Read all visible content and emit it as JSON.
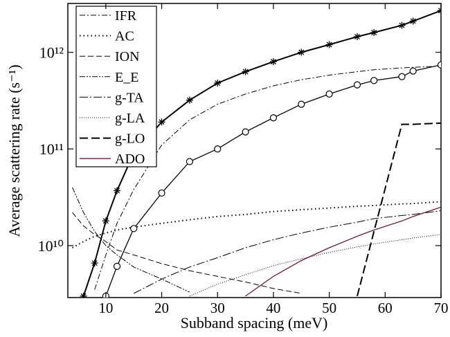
{
  "chart_data": {
    "type": "line",
    "xlabel": "Subband spacing (meV)",
    "ylabel": "Average scattering rate (s⁻¹)",
    "xlim": [
      3.2,
      70
    ],
    "xticks": [
      10,
      20,
      30,
      40,
      50,
      60,
      70
    ],
    "ylim": [
      2900000000.0,
      3200000000000.0
    ],
    "ylog": true,
    "yticks": [
      {
        "value": 10000000000.0,
        "label": "10¹⁰"
      },
      {
        "value": 100000000000.0,
        "label": "10¹¹"
      },
      {
        "value": 1000000000000.0,
        "label": "10¹²"
      }
    ],
    "legend": "upper left",
    "x": [
      4,
      6,
      8,
      10,
      12,
      15,
      20,
      25,
      30,
      35,
      40,
      45,
      50,
      55,
      58,
      63,
      65,
      70
    ],
    "series": [
      {
        "name": "IFR",
        "color": "#000000",
        "dash": "8,3,2,3",
        "width": 1,
        "values": [
          null,
          null,
          3500000000.0,
          8000000000.0,
          17000000000.0,
          38000000000.0,
          110000000000.0,
          200000000000.0,
          290000000000.0,
          370000000000.0,
          450000000000.0,
          520000000000.0,
          580000000000.0,
          630000000000.0,
          660000000000.0,
          690000000000.0,
          700000000000.0,
          720000000000.0
        ]
      },
      {
        "name": "AC",
        "color": "#000000",
        "dash": "1.5,4",
        "width": 2,
        "values": [
          9500000000.0,
          11000000000.0,
          12500000000.0,
          13500000000.0,
          14500000000.0,
          15500000000.0,
          17000000000.0,
          18500000000.0,
          20000000000.0,
          21000000000.0,
          22500000000.0,
          23500000000.0,
          24500000000.0,
          25500000000.0,
          26000000000.0,
          27000000000.0,
          27200000000.0,
          28500000000.0
        ]
      },
      {
        "name": "ION",
        "color": "#000000",
        "dash": "8,4",
        "width": 1,
        "values": [
          22000000000.0,
          16000000000.0,
          13000000000.0,
          11000000000.0,
          9000000000.0,
          8000000000.0,
          6500000000.0,
          5500000000.0,
          4800000000.0,
          4200000000.0,
          3600000000.0,
          3200000000.0,
          null,
          null,
          null,
          null,
          null,
          null
        ]
      },
      {
        "name": "E_E",
        "color": "#000000",
        "dash": "8,2,2,2,2,2",
        "width": 1,
        "values": [
          40000000000.0,
          22000000000.0,
          14000000000.0,
          10000000000.0,
          8000000000.0,
          6000000000.0,
          4500000000.0,
          3300000000.0,
          null,
          null,
          null,
          null,
          null,
          null,
          null,
          null,
          null,
          null
        ]
      },
      {
        "name": "g-TA",
        "color": "#000000",
        "dash": "12,3,2,3",
        "width": 1,
        "values": [
          null,
          null,
          null,
          null,
          null,
          3200000000.0,
          4500000000.0,
          6000000000.0,
          7500000000.0,
          9500000000.0,
          11500000000.0,
          13500000000.0,
          15500000000.0,
          17500000000.0,
          19000000000.0,
          20500000000.0,
          21000000000.0,
          23000000000.0
        ]
      },
      {
        "name": "g-LA",
        "color": "#000000",
        "dash": "1,2",
        "width": 1,
        "values": [
          null,
          null,
          null,
          null,
          null,
          null,
          null,
          3000000000.0,
          4000000000.0,
          5000000000.0,
          6200000000.0,
          7300000000.0,
          8500000000.0,
          9700000000.0,
          10400000000.0,
          11500000000.0,
          12000000000.0,
          13000000000.0
        ]
      },
      {
        "name": "g-LO",
        "color": "#000000",
        "dash": "12,5",
        "width": 2,
        "values": [
          null,
          null,
          null,
          null,
          null,
          null,
          null,
          null,
          null,
          null,
          null,
          null,
          null,
          3000000000.0,
          14000000000.0,
          180000000000.0,
          180000000000.0,
          185000000000.0
        ]
      },
      {
        "name": "ADO",
        "color": "#6b1a3a",
        "dash": "none",
        "width": 1.3,
        "values": [
          null,
          null,
          null,
          null,
          null,
          null,
          null,
          null,
          null,
          3000000000.0,
          4800000000.0,
          7000000000.0,
          9500000000.0,
          12500000000.0,
          14500000000.0,
          18000000000.0,
          20000000000.0,
          25000000000.0
        ]
      },
      {
        "color": "#000000",
        "dash": "none",
        "width": 2,
        "marker": "star",
        "values": [
          null,
          3000000000.0,
          6600000000.0,
          18000000000.0,
          37000000000.0,
          90000000000.0,
          190000000000.0,
          320000000000.0,
          480000000000.0,
          630000000000.0,
          800000000000.0,
          1000000000000.0,
          1200000000000.0,
          1450000000000.0,
          1600000000000.0,
          1900000000000.0,
          2100000000000.0,
          2700000000000.0
        ]
      },
      {
        "color": "#000000",
        "dash": "none",
        "width": 1.3,
        "marker": "circle",
        "values": [
          null,
          null,
          null,
          3000000000.0,
          6100000000.0,
          15000000000.0,
          35000000000.0,
          74000000000.0,
          100000000000.0,
          150000000000.0,
          210000000000.0,
          290000000000.0,
          370000000000.0,
          460000000000.0,
          510000000000.0,
          560000000000.0,
          640000000000.0,
          740000000000.0
        ]
      }
    ]
  }
}
